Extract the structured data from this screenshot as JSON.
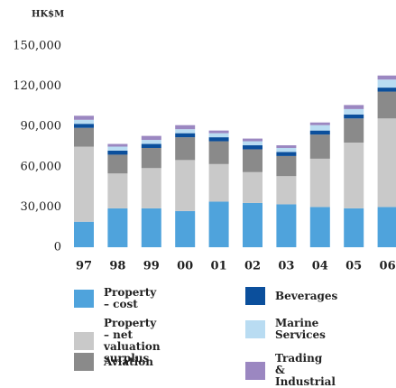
{
  "chart_data": {
    "type": "stacked_bar",
    "y_unit": "HK$M",
    "categories": [
      "97",
      "98",
      "99",
      "00",
      "01",
      "02",
      "03",
      "04",
      "05",
      "06"
    ],
    "series": [
      {
        "name": "Property – cost",
        "color": "#4fa3dc",
        "values": [
          19000,
          29000,
          29000,
          27000,
          34000,
          33000,
          32000,
          30000,
          29000,
          30000
        ]
      },
      {
        "name": "Property\n– net valuation surplus",
        "color": "#c9c9c9",
        "values": [
          56000,
          26000,
          30000,
          38000,
          28000,
          23000,
          21000,
          36000,
          49000,
          66000
        ]
      },
      {
        "name": "Aviation",
        "color": "#8a8a8a",
        "values": [
          14000,
          14000,
          15000,
          17000,
          17000,
          17000,
          15000,
          18000,
          18000,
          20000
        ]
      },
      {
        "name": "Beverages",
        "color": "#0b4f9c",
        "values": [
          3000,
          3000,
          3000,
          3000,
          3000,
          3000,
          3000,
          3000,
          3000,
          3000
        ]
      },
      {
        "name": "Marine Services",
        "color": "#b9dcf2",
        "values": [
          3000,
          3000,
          3000,
          3000,
          3000,
          3000,
          3000,
          4000,
          4000,
          6000
        ]
      },
      {
        "name": "Trading & Industrial",
        "color": "#9b87c1",
        "values": [
          3000,
          2000,
          3000,
          3000,
          2000,
          2000,
          2000,
          2000,
          3000,
          3000
        ]
      }
    ],
    "ylim": [
      0,
      150000
    ],
    "yticks": [
      0,
      {
        "value": 30000,
        "label": "30,000"
      },
      {
        "value": 60000,
        "label": "60,000"
      },
      {
        "value": 90000,
        "label": "90,000"
      },
      {
        "value": 120000,
        "label": "120,000"
      },
      {
        "value": 150000,
        "label": "150,000"
      }
    ],
    "grid": false
  }
}
